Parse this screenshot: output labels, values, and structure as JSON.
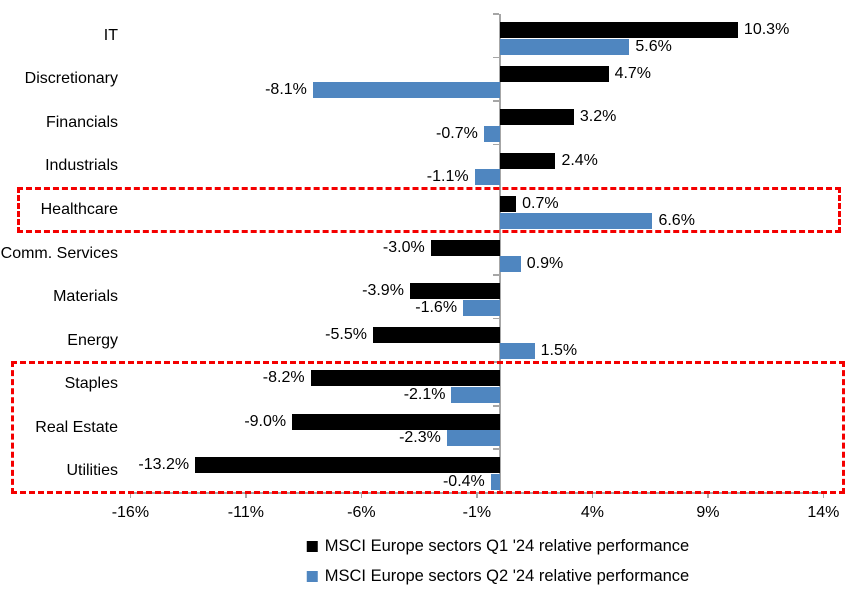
{
  "chart_data": {
    "type": "bar",
    "orientation": "horizontal",
    "title": "",
    "categories": [
      "IT",
      "Discretionary",
      "Financials",
      "Industrials",
      "Healthcare",
      "Comm. Services",
      "Materials",
      "Energy",
      "Staples",
      "Real Estate",
      "Utilities"
    ],
    "series": [
      {
        "name": "MSCI Europe sectors Q1 '24 relative performance",
        "color": "#000000",
        "values": [
          10.3,
          4.7,
          3.2,
          2.4,
          0.7,
          -3.0,
          -3.9,
          -5.5,
          -8.2,
          -9.0,
          -13.2
        ],
        "labels": [
          "10.3%",
          "4.7%",
          "3.2%",
          "2.4%",
          "0.7%",
          "-3.0%",
          "-3.9%",
          "-5.5%",
          "-8.2%",
          "-9.0%",
          "-13.2%"
        ]
      },
      {
        "name": "MSCI Europe sectors Q2 '24 relative performance",
        "color": "#4f86c0",
        "values": [
          5.6,
          -8.1,
          -0.7,
          -1.1,
          6.6,
          0.9,
          -1.6,
          1.5,
          -2.1,
          -2.3,
          -0.4
        ],
        "labels": [
          "5.6%",
          "-8.1%",
          "-0.7%",
          "-1.1%",
          "6.6%",
          "0.9%",
          "-1.6%",
          "1.5%",
          "-2.1%",
          "-2.3%",
          "-0.4%"
        ]
      }
    ],
    "x_axis": {
      "min": -16,
      "max": 14,
      "ticks": [
        {
          "label": "-16%",
          "value": -16
        },
        {
          "label": "-11%",
          "value": -11
        },
        {
          "label": "-6%",
          "value": -6
        },
        {
          "label": "-1%",
          "value": -1
        },
        {
          "label": "4%",
          "value": 4
        },
        {
          "label": "9%",
          "value": 9
        },
        {
          "label": "14%",
          "value": 14
        }
      ]
    },
    "axis_color": "#a6a6a6",
    "grid": false,
    "legend_position": "bottom",
    "highlight_color": "#f40000",
    "highlights": [
      {
        "name": "healthcare-highlight",
        "start_category": "Healthcare",
        "end_category": "Healthcare"
      },
      {
        "name": "defensives-highlight",
        "start_category": "Staples",
        "end_category": "Utilities"
      }
    ]
  }
}
